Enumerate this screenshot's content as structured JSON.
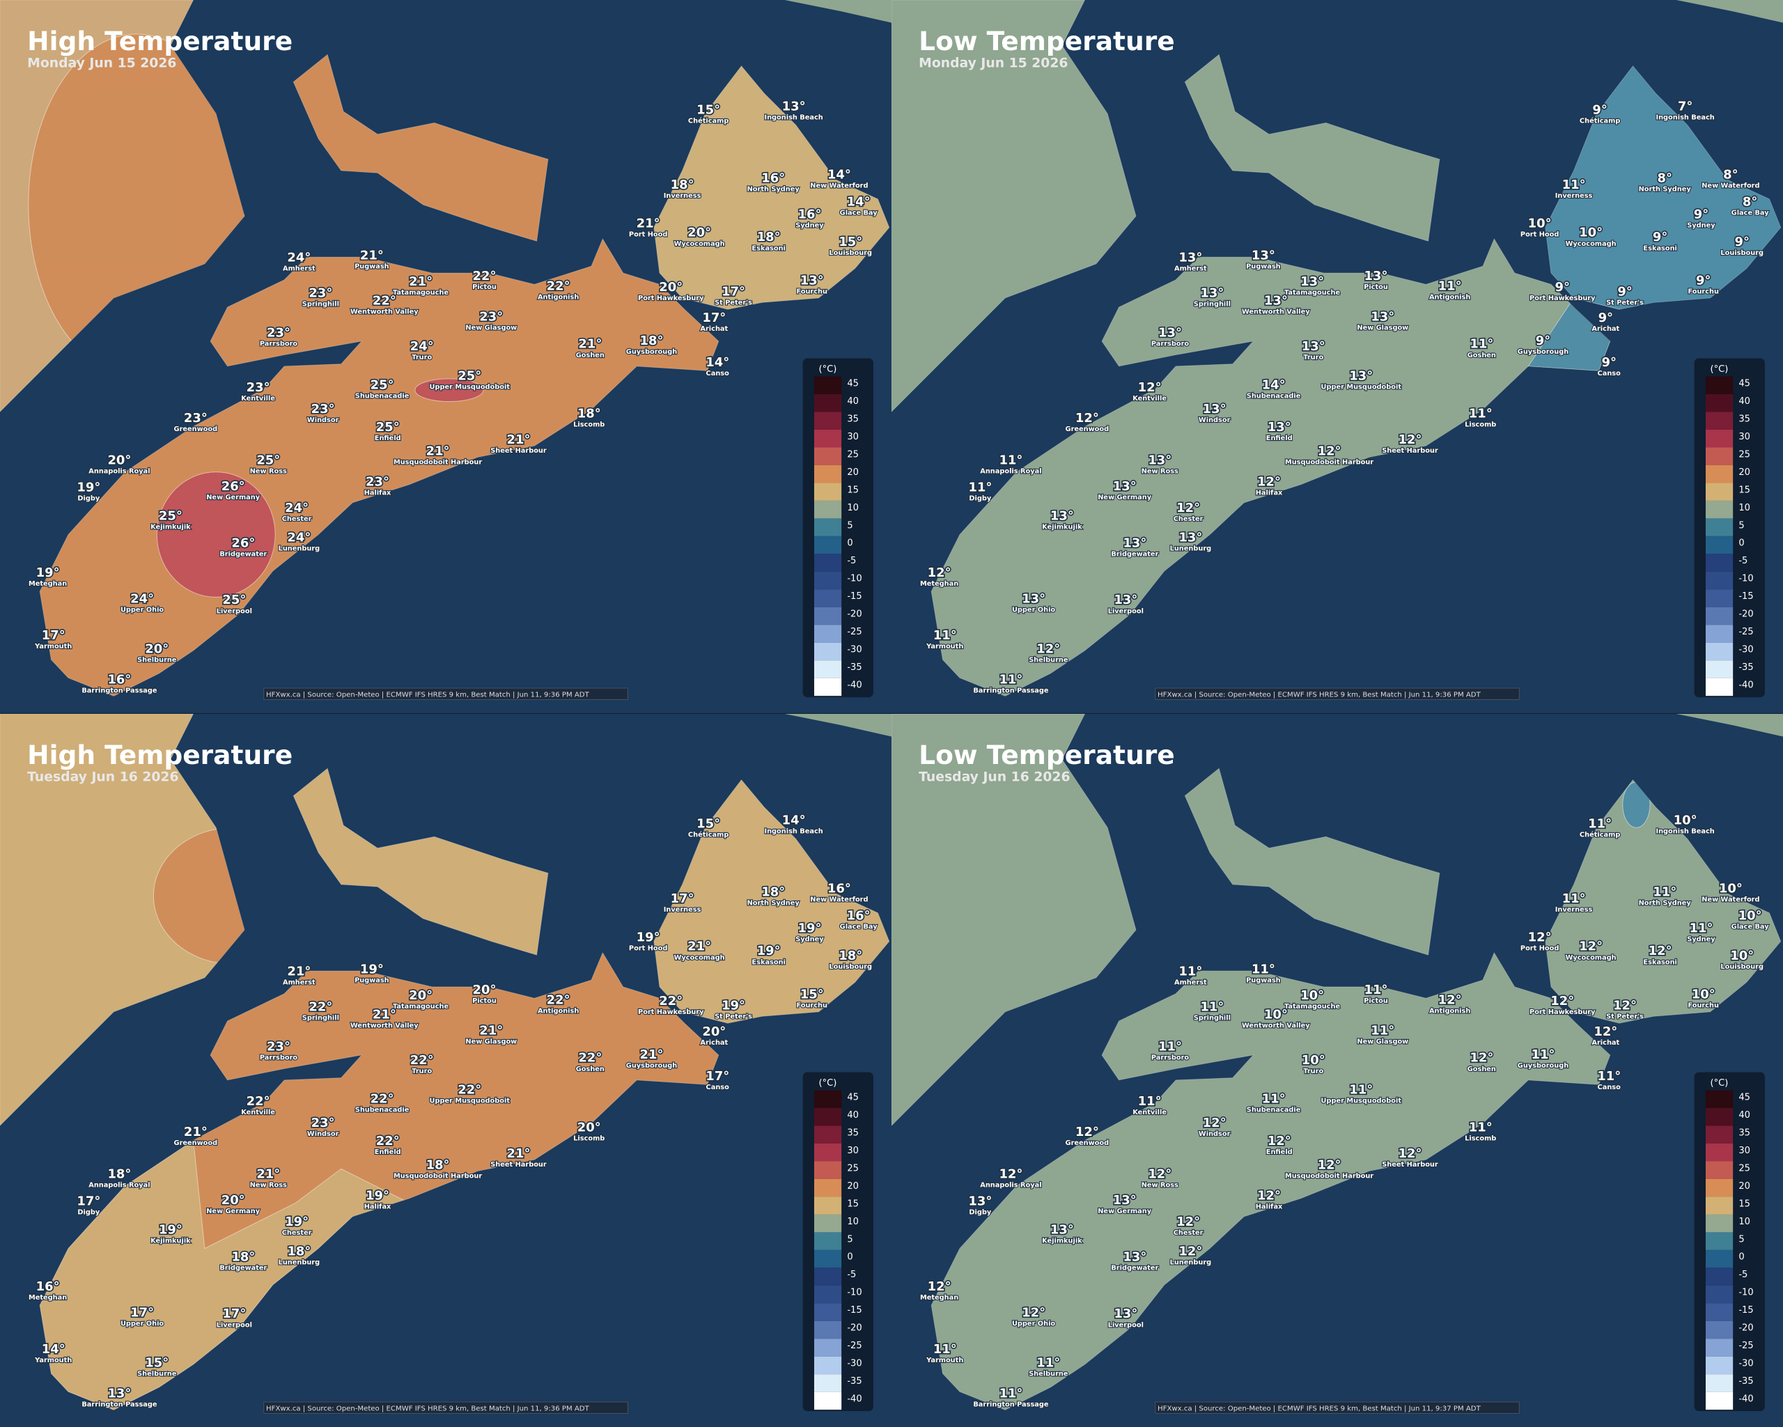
{
  "cities": [
    "Chéticamp",
    "Ingonish Beach",
    "Inverness",
    "North Sydney",
    "New Waterford",
    "Glace Bay",
    "Sydney",
    "Port Hood",
    "Wycocomagh",
    "Eskasoni",
    "Louisbourg",
    "Amherst",
    "Pugwash",
    "Tatamagouche",
    "Pictou",
    "Antigonish",
    "Port Hawkesbury",
    "St Peter's",
    "Fourchu",
    "Springhill",
    "Wentworth Valley",
    "New Glasgow",
    "Arichat",
    "Parrsboro",
    "Truro",
    "Goshen",
    "Guysborough",
    "Canso",
    "Kentville",
    "Shubenacadie",
    "Upper Musquodoboit",
    "Windsor",
    "Liscomb",
    "Greenwood",
    "Enfield",
    "Sheet Harbour",
    "Musquodoboit Harbour",
    "Annapolis Royal",
    "New Ross",
    "Digby",
    "Halifax",
    "New Germany",
    "Kejimkujik",
    "Chester",
    "Lunenburg",
    "Bridgewater",
    "Meteghan",
    "Upper Ohio",
    "Liverpool",
    "Yarmouth",
    "Shelburne",
    "Barrington Passage"
  ],
  "legend": {
    "unit": "(°C)",
    "ticks": [
      45,
      40,
      35,
      30,
      25,
      20,
      15,
      10,
      5,
      0,
      -5,
      -10,
      -15,
      -20,
      -25,
      -30,
      -35,
      -40
    ],
    "colors": [
      "#2b0a10",
      "#4e1020",
      "#7b1e36",
      "#a8354a",
      "#c45b52",
      "#d78d55",
      "#d3b174",
      "#95a890",
      "#3f8095",
      "#23608a",
      "#25407a",
      "#2e4c88",
      "#3d5b98",
      "#5a78b2",
      "#86a3d6",
      "#b2ccee",
      "#dcedfa",
      "#ffffff"
    ]
  },
  "panels": [
    {
      "title": "High Temperature",
      "subtitle": "Monday Jun 15 2026",
      "footer": "HFXwx.ca | Source: Open-Meteo | ECMWF IFS HRES 9 km, Best Match | Jun 11, 9:36 PM ADT",
      "temps": [
        "15°",
        "13°",
        "18°",
        "16°",
        "14°",
        "14°",
        "16°",
        "21°",
        "20°",
        "18°",
        "15°",
        "24°",
        "21°",
        "21°",
        "22°",
        "22°",
        "20°",
        "17°",
        "13°",
        "23°",
        "22°",
        "23°",
        "17°",
        "23°",
        "24°",
        "21°",
        "18°",
        "14°",
        "23°",
        "25°",
        "25°",
        "23°",
        "18°",
        "23°",
        "25°",
        "21°",
        "21°",
        "20°",
        "25°",
        "19°",
        "23°",
        "26°",
        "25°",
        "24°",
        "24°",
        "26°",
        "19°",
        "24°",
        "25°",
        "17°",
        "20°",
        "16°"
      ]
    },
    {
      "title": "Low Temperature",
      "subtitle": "Monday Jun 15 2026",
      "footer": "HFXwx.ca | Source: Open-Meteo | ECMWF IFS HRES 9 km, Best Match | Jun 11, 9:36 PM ADT",
      "temps": [
        "9°",
        "7°",
        "11°",
        "8°",
        "8°",
        "8°",
        "9°",
        "10°",
        "10°",
        "9°",
        "9°",
        "13°",
        "13°",
        "13°",
        "13°",
        "11°",
        "9°",
        "9°",
        "9°",
        "13°",
        "13°",
        "13°",
        "9°",
        "13°",
        "13°",
        "11°",
        "9°",
        "9°",
        "12°",
        "14°",
        "13°",
        "13°",
        "11°",
        "12°",
        "13°",
        "12°",
        "12°",
        "11°",
        "13°",
        "11°",
        "12°",
        "13°",
        "13°",
        "12°",
        "13°",
        "13°",
        "12°",
        "13°",
        "13°",
        "11°",
        "12°",
        "11°"
      ]
    },
    {
      "title": "High Temperature",
      "subtitle": "Tuesday Jun 16 2026",
      "footer": "HFXwx.ca | Source: Open-Meteo | ECMWF IFS HRES 9 km, Best Match | Jun 11, 9:36 PM ADT",
      "temps": [
        "15°",
        "14°",
        "17°",
        "18°",
        "16°",
        "16°",
        "19°",
        "19°",
        "21°",
        "19°",
        "18°",
        "21°",
        "19°",
        "20°",
        "20°",
        "22°",
        "22°",
        "19°",
        "15°",
        "22°",
        "21°",
        "21°",
        "20°",
        "23°",
        "22°",
        "22°",
        "21°",
        "17°",
        "22°",
        "22°",
        "22°",
        "23°",
        "20°",
        "21°",
        "22°",
        "21°",
        "18°",
        "18°",
        "21°",
        "17°",
        "19°",
        "20°",
        "19°",
        "19°",
        "18°",
        "18°",
        "16°",
        "17°",
        "17°",
        "14°",
        "15°",
        "13°"
      ]
    },
    {
      "title": "Low Temperature",
      "subtitle": "Tuesday Jun 16 2026",
      "footer": "HFXwx.ca | Source: Open-Meteo | ECMWF IFS HRES 9 km, Best Match | Jun 11, 9:37 PM ADT",
      "temps": [
        "11°",
        "10°",
        "11°",
        "11°",
        "10°",
        "10°",
        "11°",
        "12°",
        "12°",
        "12°",
        "10°",
        "11°",
        "11°",
        "10°",
        "11°",
        "12°",
        "12°",
        "12°",
        "10°",
        "11°",
        "10°",
        "11°",
        "12°",
        "11°",
        "10°",
        "12°",
        "11°",
        "11°",
        "11°",
        "11°",
        "11°",
        "12°",
        "11°",
        "12°",
        "12°",
        "12°",
        "12°",
        "12°",
        "12°",
        "13°",
        "12°",
        "13°",
        "13°",
        "12°",
        "12°",
        "13°",
        "12°",
        "12°",
        "13°",
        "11°",
        "11°",
        "11°"
      ]
    }
  ]
}
